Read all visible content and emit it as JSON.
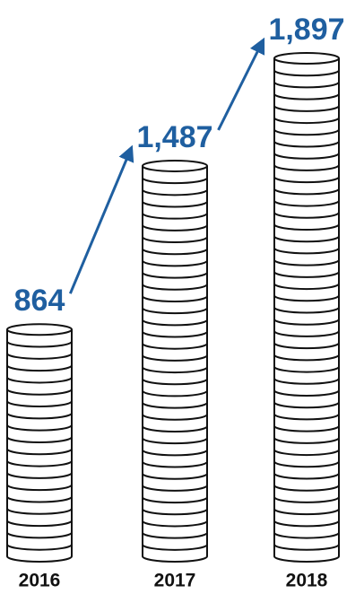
{
  "chart_data": {
    "type": "bar",
    "categories": [
      "2016",
      "2017",
      "2018"
    ],
    "values": [
      864,
      1487,
      1897
    ],
    "value_labels": [
      "864",
      "1,487",
      "1,897"
    ],
    "color": "#1f5fa0"
  }
}
